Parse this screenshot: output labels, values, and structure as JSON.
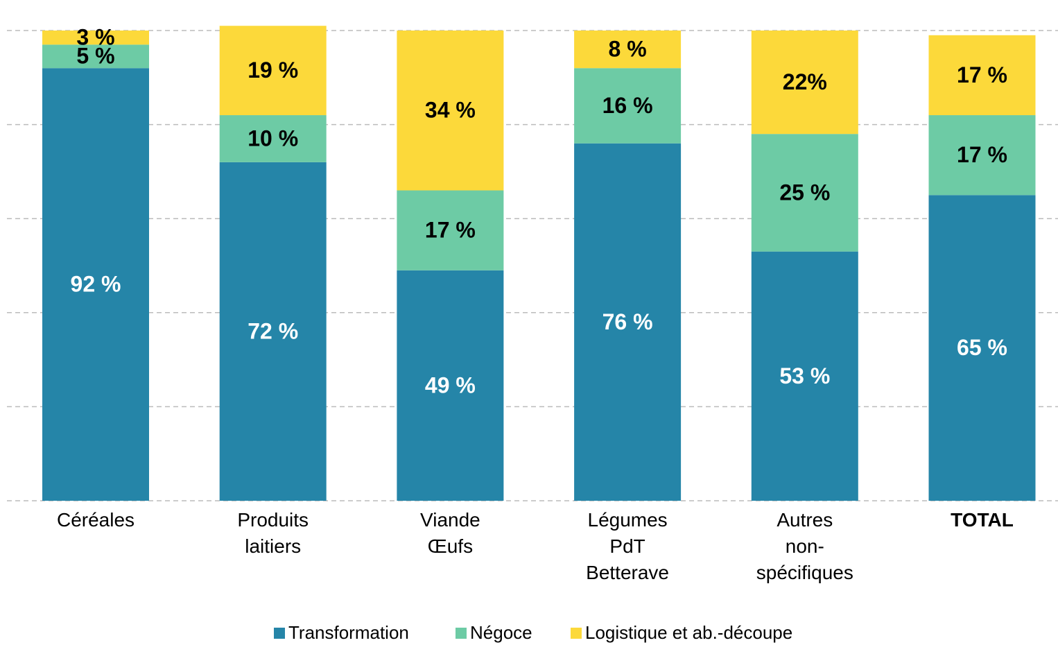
{
  "chart_data": {
    "type": "stacked_bar",
    "categories": [
      [
        "Céréales"
      ],
      [
        "Produits",
        "laitiers"
      ],
      [
        "Viande",
        "Œufs"
      ],
      [
        "Légumes",
        "PdT",
        "Betterave"
      ],
      [
        "Autres",
        "non-",
        "spécifiques"
      ],
      [
        "TOTAL"
      ]
    ],
    "series": [
      {
        "name": "Transformation",
        "color": "#2585a8",
        "label_color": "#ffffff",
        "values": [
          92,
          72,
          49,
          76,
          53,
          65
        ],
        "value_labels": [
          "92 %",
          "72 %",
          "49 %",
          "76 %",
          "53 %",
          "65 %"
        ]
      },
      {
        "name": "Négoce",
        "color": "#6dcba5",
        "label_color": "#000000",
        "values": [
          5,
          10,
          17,
          16,
          25,
          17
        ],
        "value_labels": [
          "5 %",
          "10 %",
          "17 %",
          "16 %",
          "25 %",
          "17 %"
        ]
      },
      {
        "name": "Logistique et ab.-découpe",
        "color": "#fcd93a",
        "label_color": "#000000",
        "values": [
          3,
          19,
          34,
          8,
          22,
          17
        ],
        "value_labels": [
          "3 %",
          "19 %",
          "34 %",
          "8 %",
          "22%",
          "17 %"
        ]
      }
    ],
    "ylim": [
      0,
      100
    ],
    "yticks": [
      0,
      20,
      40,
      60,
      80,
      100
    ],
    "grid": true,
    "legend": "bottom"
  }
}
